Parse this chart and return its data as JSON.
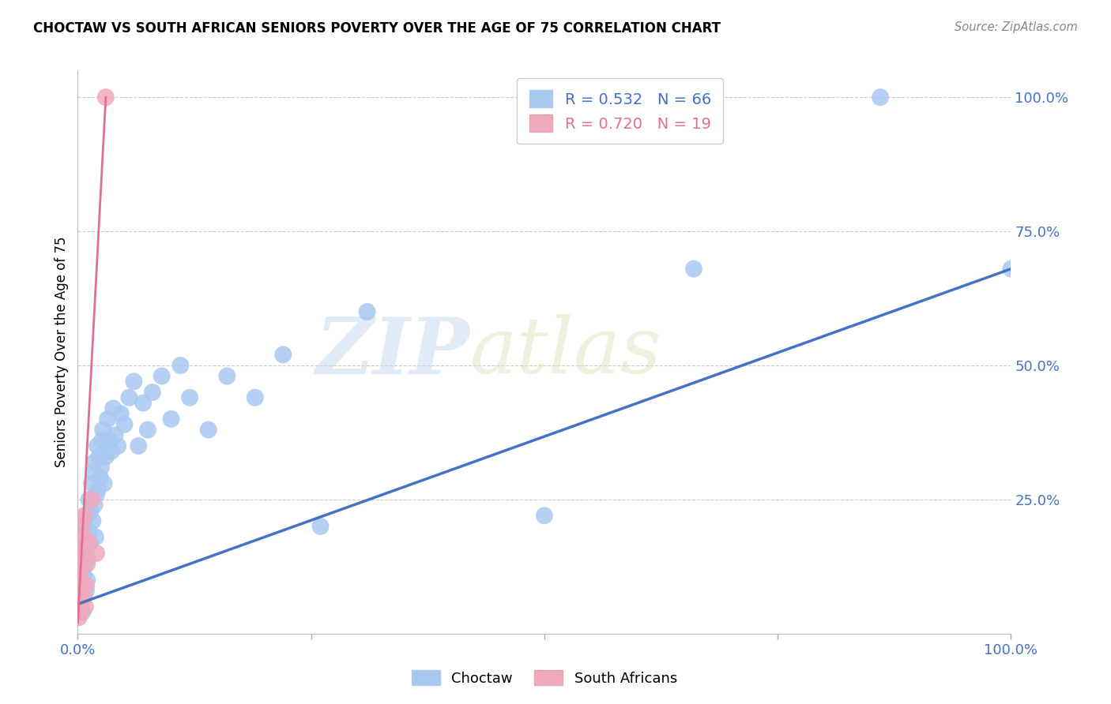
{
  "title": "CHOCTAW VS SOUTH AFRICAN SENIORS POVERTY OVER THE AGE OF 75 CORRELATION CHART",
  "source": "Source: ZipAtlas.com",
  "ylabel": "Seniors Poverty Over the Age of 75",
  "blue_R": 0.532,
  "blue_N": 66,
  "pink_R": 0.72,
  "pink_N": 19,
  "blue_color": "#A8C8F0",
  "pink_color": "#F0A8BC",
  "blue_line_color": "#4472C4",
  "pink_line_color": "#E07090",
  "legend_label_blue": "Choctaw",
  "legend_label_pink": "South Africans",
  "watermark_zip": "ZIP",
  "watermark_atlas": "atlas",
  "blue_points_x": [
    0.001,
    0.001,
    0.002,
    0.003,
    0.003,
    0.004,
    0.005,
    0.005,
    0.006,
    0.007,
    0.007,
    0.008,
    0.008,
    0.009,
    0.009,
    0.01,
    0.01,
    0.011,
    0.012,
    0.012,
    0.013,
    0.014,
    0.015,
    0.016,
    0.017,
    0.018,
    0.018,
    0.019,
    0.02,
    0.021,
    0.022,
    0.023,
    0.024,
    0.025,
    0.026,
    0.027,
    0.028,
    0.03,
    0.032,
    0.034,
    0.036,
    0.038,
    0.04,
    0.043,
    0.046,
    0.05,
    0.055,
    0.06,
    0.065,
    0.07,
    0.075,
    0.08,
    0.09,
    0.1,
    0.11,
    0.12,
    0.14,
    0.16,
    0.19,
    0.22,
    0.26,
    0.31,
    0.5,
    0.66,
    0.86,
    1.0
  ],
  "blue_points_y": [
    0.05,
    0.1,
    0.08,
    0.06,
    0.12,
    0.09,
    0.04,
    0.15,
    0.11,
    0.07,
    0.18,
    0.13,
    0.2,
    0.08,
    0.16,
    0.22,
    0.1,
    0.14,
    0.25,
    0.19,
    0.17,
    0.23,
    0.28,
    0.21,
    0.3,
    0.24,
    0.32,
    0.18,
    0.26,
    0.35,
    0.27,
    0.33,
    0.29,
    0.31,
    0.36,
    0.38,
    0.28,
    0.33,
    0.4,
    0.36,
    0.34,
    0.42,
    0.37,
    0.35,
    0.41,
    0.39,
    0.44,
    0.47,
    0.35,
    0.43,
    0.38,
    0.45,
    0.48,
    0.4,
    0.5,
    0.44,
    0.38,
    0.48,
    0.44,
    0.52,
    0.2,
    0.6,
    0.22,
    0.68,
    1.0,
    0.68
  ],
  "pink_points_x": [
    0.001,
    0.001,
    0.001,
    0.002,
    0.002,
    0.003,
    0.003,
    0.004,
    0.004,
    0.005,
    0.006,
    0.007,
    0.008,
    0.009,
    0.01,
    0.012,
    0.015,
    0.02,
    0.03
  ],
  "pink_points_y": [
    0.03,
    0.06,
    0.12,
    0.08,
    0.16,
    0.04,
    0.1,
    0.14,
    0.2,
    0.07,
    0.18,
    0.22,
    0.05,
    0.09,
    0.13,
    0.17,
    0.25,
    0.15,
    1.0
  ],
  "blue_trend_x": [
    0.0,
    1.0
  ],
  "blue_trend_y": [
    0.055,
    0.68
  ],
  "pink_trend_x": [
    0.0,
    0.03
  ],
  "pink_trend_y": [
    0.02,
    1.0
  ],
  "xlim": [
    0.0,
    1.0
  ],
  "ylim": [
    0.0,
    1.05
  ],
  "ytick_positions": [
    0.25,
    0.5,
    0.75,
    1.0
  ],
  "ytick_labels": [
    "25.0%",
    "50.0%",
    "75.0%",
    "100.0%"
  ],
  "xtick_positions": [
    0.0,
    0.25,
    0.5,
    0.75,
    1.0
  ],
  "xtick_labels": [
    "0.0%",
    "",
    "",
    "",
    "100.0%"
  ]
}
